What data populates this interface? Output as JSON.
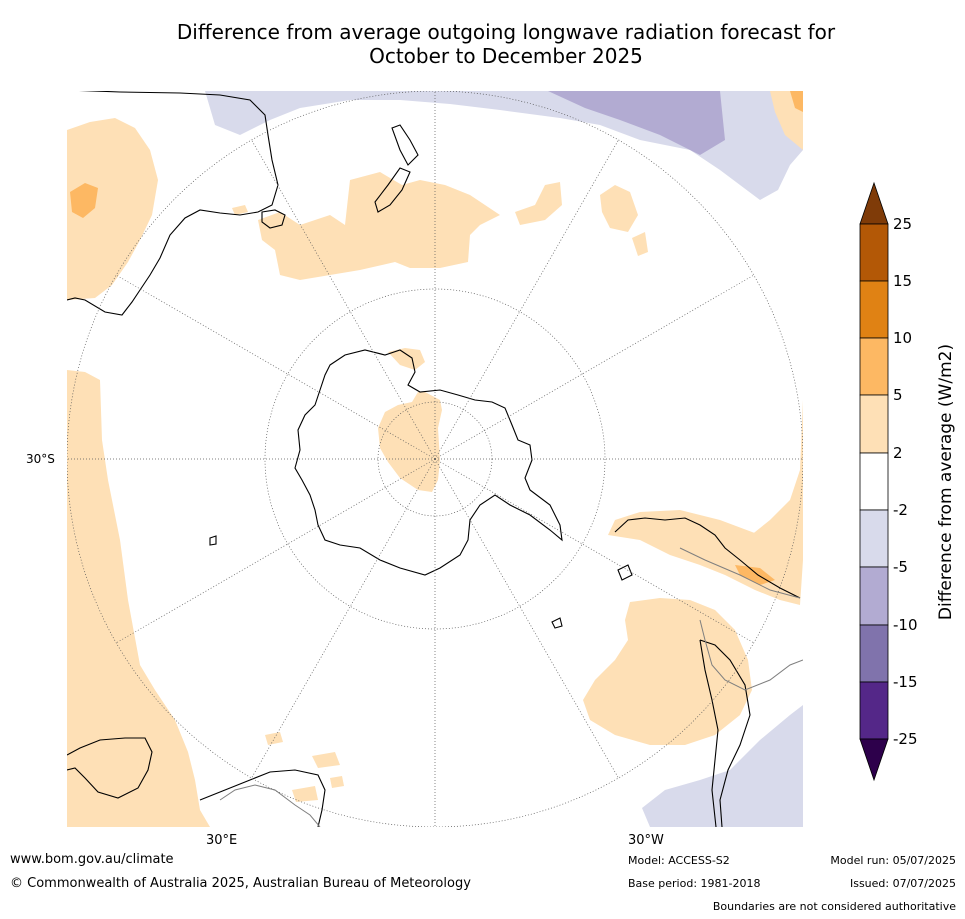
{
  "title_line1": "Difference from average outgoing longwave radiation forecast for",
  "title_line2": "October to December 2025",
  "map": {
    "projection": "south polar stereographic",
    "lat_label": "30°S",
    "lon_label_left": "30°E",
    "lon_label_right": "30°W"
  },
  "colorbar": {
    "label": "Difference from average (W/m2)",
    "ticks": [
      "25",
      "15",
      "10",
      "5",
      "2",
      "-2",
      "-5",
      "-10",
      "-15",
      "-25"
    ],
    "colors": {
      "over": "#7f3b08",
      "15_25": "#b35806",
      "10_15": "#e08214",
      "5_10": "#fdb863",
      "2_5": "#fee0b6",
      "m2_2": "#ffffff",
      "m5_m2": "#d8daeb",
      "m10_m5": "#b2abd2",
      "m15_m10": "#8073ac",
      "m25_m15": "#542788",
      "under": "#2d004b"
    }
  },
  "footer": {
    "url": "www.bom.gov.au/climate",
    "copyright": "© Commonwealth of Australia 2025, Australian Bureau of Meteorology",
    "model": "Model: ACCESS-S2",
    "base_period": "Base period: 1981-2018",
    "model_run": "Model run: 05/07/2025",
    "issued": "Issued: 07/07/2025",
    "disclaimer": "Boundaries are not considered authoritative"
  }
}
